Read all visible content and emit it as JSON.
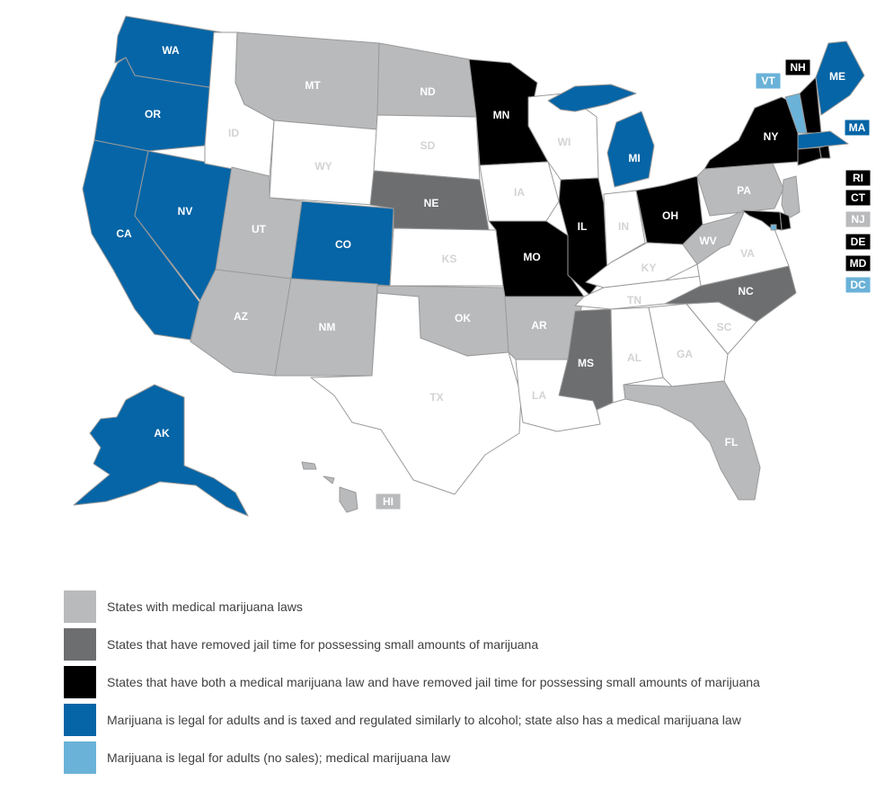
{
  "colors": {
    "none": "#ffffff",
    "medical": "#b9babc",
    "decrim": "#6d6e70",
    "both": "#000000",
    "legal": "#0565a6",
    "legal_no_sales": "#6ab2d8",
    "label_light": "#d3d3d3",
    "label_dark": "#ffffff"
  },
  "legend": [
    {
      "category": "medical",
      "text": "States with medical marijuana laws"
    },
    {
      "category": "decrim",
      "text": "States that have removed jail time for possessing small amounts of marijuana"
    },
    {
      "category": "both",
      "text": "States that have both a medical marijuana law and have removed jail time for possessing small amounts of marijuana"
    },
    {
      "category": "legal",
      "text": "Marijuana is legal for adults and is taxed and regulated similarly to alcohol; state also has a medical marijuana law"
    },
    {
      "category": "legal_no_sales",
      "text": "Marijuana is legal for adults (no sales); medical marijuana law"
    }
  ],
  "states": [
    {
      "abbr": "WA",
      "category": "legal"
    },
    {
      "abbr": "OR",
      "category": "legal"
    },
    {
      "abbr": "CA",
      "category": "legal"
    },
    {
      "abbr": "NV",
      "category": "legal"
    },
    {
      "abbr": "ID",
      "category": "none"
    },
    {
      "abbr": "MT",
      "category": "medical"
    },
    {
      "abbr": "WY",
      "category": "none"
    },
    {
      "abbr": "UT",
      "category": "medical"
    },
    {
      "abbr": "CO",
      "category": "legal"
    },
    {
      "abbr": "AZ",
      "category": "medical"
    },
    {
      "abbr": "NM",
      "category": "medical"
    },
    {
      "abbr": "ND",
      "category": "medical"
    },
    {
      "abbr": "SD",
      "category": "none"
    },
    {
      "abbr": "NE",
      "category": "decrim"
    },
    {
      "abbr": "KS",
      "category": "none"
    },
    {
      "abbr": "OK",
      "category": "medical"
    },
    {
      "abbr": "TX",
      "category": "none"
    },
    {
      "abbr": "MN",
      "category": "both"
    },
    {
      "abbr": "IA",
      "category": "none"
    },
    {
      "abbr": "MO",
      "category": "both"
    },
    {
      "abbr": "AR",
      "category": "medical"
    },
    {
      "abbr": "LA",
      "category": "none"
    },
    {
      "abbr": "WI",
      "category": "none"
    },
    {
      "abbr": "IL",
      "category": "both"
    },
    {
      "abbr": "MI",
      "category": "legal"
    },
    {
      "abbr": "IN",
      "category": "none"
    },
    {
      "abbr": "OH",
      "category": "both"
    },
    {
      "abbr": "KY",
      "category": "none"
    },
    {
      "abbr": "TN",
      "category": "none"
    },
    {
      "abbr": "MS",
      "category": "decrim"
    },
    {
      "abbr": "AL",
      "category": "none"
    },
    {
      "abbr": "GA",
      "category": "none"
    },
    {
      "abbr": "FL",
      "category": "medical"
    },
    {
      "abbr": "SC",
      "category": "none"
    },
    {
      "abbr": "NC",
      "category": "decrim"
    },
    {
      "abbr": "VA",
      "category": "none"
    },
    {
      "abbr": "WV",
      "category": "medical"
    },
    {
      "abbr": "PA",
      "category": "medical"
    },
    {
      "abbr": "NY",
      "category": "both"
    },
    {
      "abbr": "VT",
      "category": "legal_no_sales"
    },
    {
      "abbr": "NH",
      "category": "both"
    },
    {
      "abbr": "ME",
      "category": "legal"
    },
    {
      "abbr": "MA",
      "category": "legal"
    },
    {
      "abbr": "RI",
      "category": "both"
    },
    {
      "abbr": "CT",
      "category": "both"
    },
    {
      "abbr": "NJ",
      "category": "medical"
    },
    {
      "abbr": "DE",
      "category": "both"
    },
    {
      "abbr": "MD",
      "category": "both"
    },
    {
      "abbr": "DC",
      "category": "legal_no_sales"
    },
    {
      "abbr": "AK",
      "category": "legal"
    },
    {
      "abbr": "HI",
      "category": "medical"
    }
  ]
}
